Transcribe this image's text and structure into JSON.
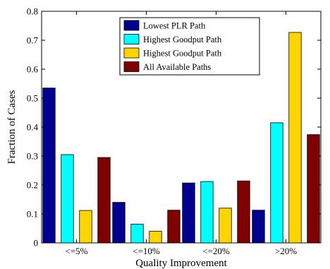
{
  "chart_data": {
    "type": "bar",
    "categories": [
      "<=5%",
      "<=10%",
      "<=20%",
      ">20%"
    ],
    "series": [
      {
        "name": "Lowest PLR Path",
        "color": "#00008f",
        "values": [
          0.535,
          0.14,
          0.207,
          0.113
        ]
      },
      {
        "name": "Highest Goodput Path",
        "color": "#00ffff",
        "values": [
          0.305,
          0.065,
          0.212,
          0.415
        ]
      },
      {
        "name": "Highest Goodput Path",
        "color": "#ffd500",
        "values": [
          0.112,
          0.04,
          0.12,
          0.727
        ]
      },
      {
        "name": "All Available Paths",
        "color": "#800000",
        "values": [
          0.295,
          0.113,
          0.214,
          0.374
        ]
      }
    ],
    "xlabel": "Quality Improvement",
    "ylabel": "Fraction of Cases",
    "ylim": [
      0,
      0.8
    ],
    "yticks": [
      "0",
      "0.1",
      "0.2",
      "0.3",
      "0.4",
      "0.5",
      "0.6",
      "0.7",
      "0.8"
    ],
    "grid": false,
    "legend_position": "top-center"
  }
}
